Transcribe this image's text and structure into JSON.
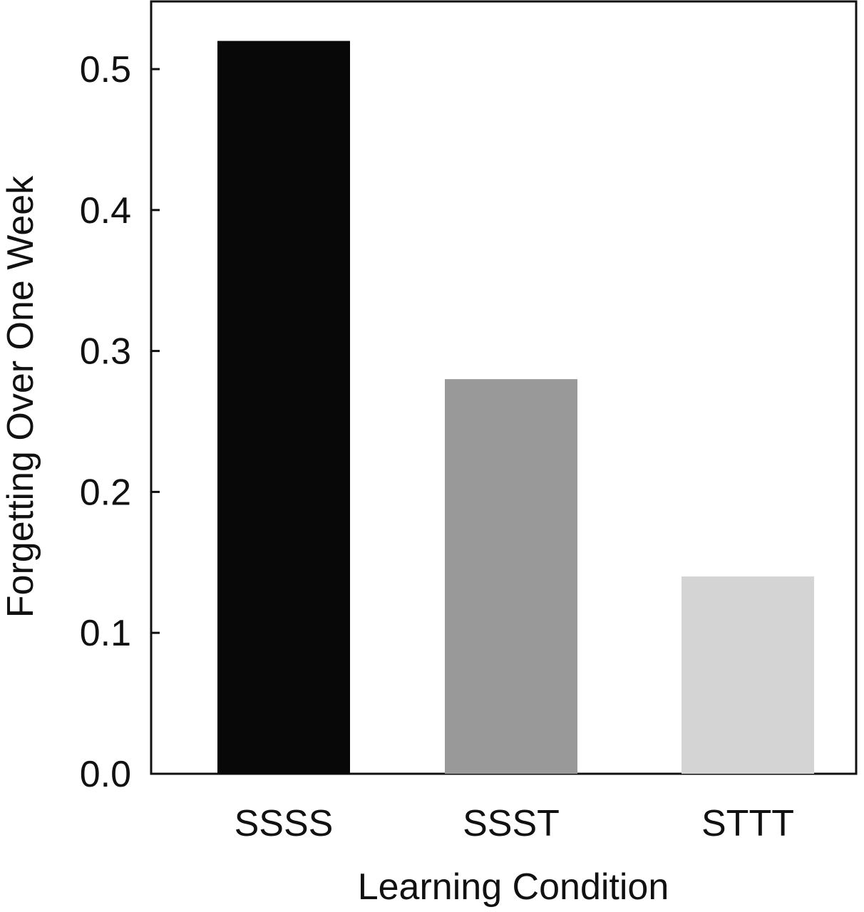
{
  "chart_data": {
    "type": "bar",
    "categories": [
      "SSSS",
      "SSST",
      "STTT"
    ],
    "values": [
      0.52,
      0.28,
      0.14
    ],
    "bar_colors": [
      "#080808",
      "#999999",
      "#d4d4d4"
    ],
    "xlabel": "Learning Condition",
    "ylabel": "Forgetting Over One Week",
    "ylim": [
      0,
      0.5
    ],
    "yticks": [
      "0.0",
      "0.1",
      "0.2",
      "0.3",
      "0.4",
      "0.5"
    ],
    "grid": false,
    "legend": "none"
  }
}
